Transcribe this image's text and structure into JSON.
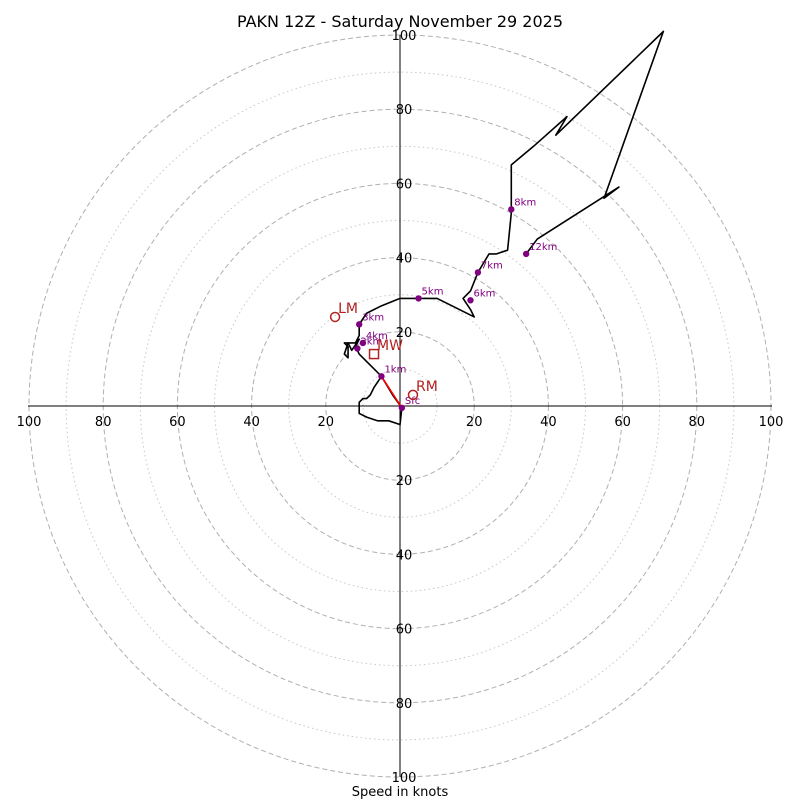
{
  "chart_data": {
    "type": "hodograph",
    "title": "PAKN 12Z - Saturday November 29 2025",
    "xlabel": "Speed in knots",
    "units": "knots",
    "rmax": 100,
    "major_rings": [
      20,
      40,
      60,
      80,
      100
    ],
    "minor_rings": [
      10,
      30,
      50,
      70,
      90
    ],
    "tick_labels": {
      "x_left": [
        "100",
        "80",
        "60",
        "40",
        "20"
      ],
      "x_right": [
        "20",
        "40",
        "60",
        "80",
        "100"
      ],
      "y_up": [
        "20",
        "40",
        "60",
        "80",
        "100"
      ],
      "y_down": [
        "20",
        "40",
        "60",
        "80",
        "100"
      ]
    },
    "hodograph_trace": [
      [
        0.5,
        -0.5
      ],
      [
        -2,
        3
      ],
      [
        -5,
        8
      ],
      [
        -8,
        11
      ],
      [
        -11,
        14
      ],
      [
        -12,
        16
      ],
      [
        -11,
        18
      ],
      [
        -13,
        15
      ],
      [
        -14,
        17
      ],
      [
        -15,
        14
      ],
      [
        -14,
        13
      ],
      [
        -14,
        16
      ],
      [
        -15,
        17
      ],
      [
        -12,
        17
      ],
      [
        -11,
        19
      ],
      [
        -11,
        22
      ],
      [
        -9,
        25
      ],
      [
        -5,
        27
      ],
      [
        0,
        29
      ],
      [
        5,
        29
      ],
      [
        10,
        29
      ],
      [
        14,
        27
      ],
      [
        20,
        24
      ],
      [
        19,
        26
      ],
      [
        17,
        29
      ],
      [
        19,
        31
      ],
      [
        21,
        36
      ],
      [
        24,
        41
      ],
      [
        26,
        41
      ],
      [
        29,
        42
      ],
      [
        30,
        52
      ],
      [
        30,
        58
      ],
      [
        30,
        65
      ],
      [
        36,
        70
      ],
      [
        45,
        78
      ],
      [
        42,
        73
      ],
      [
        70,
        100
      ],
      [
        71,
        101
      ],
      [
        55,
        56
      ],
      [
        59,
        59
      ],
      [
        37,
        45
      ],
      [
        34,
        41
      ]
    ],
    "surface_segment": {
      "from": [
        0.5,
        -0.5
      ],
      "to": [
        -5,
        8
      ],
      "color": "#ff0000"
    },
    "low_level_loop": [
      [
        -5,
        8
      ],
      [
        -7,
        5
      ],
      [
        -8,
        3
      ],
      [
        -9,
        2
      ],
      [
        -10,
        2
      ],
      [
        -11,
        1
      ],
      [
        -11,
        -2
      ],
      [
        -9,
        -3
      ],
      [
        -6,
        -4
      ],
      [
        -3,
        -4
      ],
      [
        0,
        -5
      ],
      [
        0.5,
        -0.5
      ]
    ],
    "height_markers": [
      {
        "label": "Sfc",
        "u": 0.5,
        "v": -0.5
      },
      {
        "label": "1km",
        "u": -5,
        "v": 8
      },
      {
        "label": "2km",
        "u": -11.5,
        "v": 15.5
      },
      {
        "label": "3km",
        "u": -11,
        "v": 22
      },
      {
        "label": "4km",
        "u": -10,
        "v": 17
      },
      {
        "label": "5km",
        "u": 5,
        "v": 29
      },
      {
        "label": "6km",
        "u": 19,
        "v": 28.5
      },
      {
        "label": "7km",
        "u": 21,
        "v": 36
      },
      {
        "label": "8km",
        "u": 30,
        "v": 53
      },
      {
        "label": "12km",
        "u": 34,
        "v": 41
      }
    ],
    "storm_motion": [
      {
        "label": "RM",
        "u": 3.5,
        "v": 3,
        "marker": "circle"
      },
      {
        "label": "LM",
        "u": -17.5,
        "v": 24,
        "marker": "circle"
      },
      {
        "label": "MW",
        "u": -7,
        "v": 14,
        "marker": "square"
      }
    ],
    "colors": {
      "trace": "#000000",
      "surface_segment": "#ff0000",
      "markers": "#800080",
      "storm_motion": "#b22222",
      "rings": "#b0b0b0"
    }
  }
}
